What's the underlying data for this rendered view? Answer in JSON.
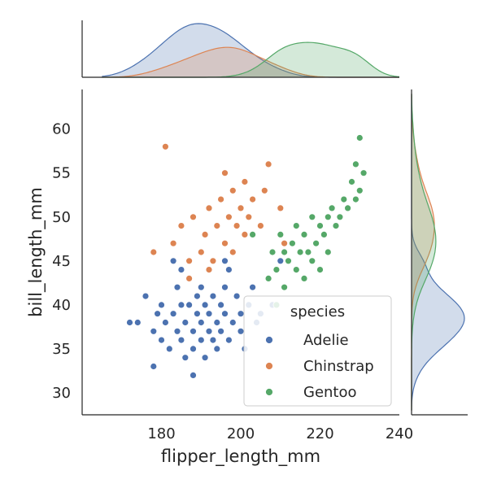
{
  "chart_data": {
    "type": "scatter",
    "subtype": "jointplot",
    "xlabel": "flipper_length_mm",
    "ylabel": "bill_length_mm",
    "xlim": [
      160,
      240
    ],
    "ylim": [
      27.5,
      64.5
    ],
    "xticks": [
      180,
      200,
      220,
      240
    ],
    "yticks": [
      30,
      35,
      40,
      45,
      50,
      55,
      60
    ],
    "grid": false,
    "legend": {
      "title": "species",
      "placement": "bottom-right"
    },
    "marginals": {
      "top": "kde of flipper_length_mm by species",
      "right": "kde of bill_length_mm by species"
    },
    "series": [
      {
        "name": "Adelie",
        "color": "#4c72b0",
        "points": [
          [
            172,
            38
          ],
          [
            174,
            38
          ],
          [
            176,
            41
          ],
          [
            178,
            37
          ],
          [
            179,
            39
          ],
          [
            180,
            36
          ],
          [
            180,
            40
          ],
          [
            181,
            38
          ],
          [
            182,
            35
          ],
          [
            183,
            39
          ],
          [
            184,
            37
          ],
          [
            184,
            42
          ],
          [
            185,
            40
          ],
          [
            185,
            36
          ],
          [
            186,
            38
          ],
          [
            186,
            34
          ],
          [
            187,
            40
          ],
          [
            187,
            43
          ],
          [
            188,
            37
          ],
          [
            188,
            35
          ],
          [
            189,
            39
          ],
          [
            189,
            41
          ],
          [
            190,
            38
          ],
          [
            190,
            36
          ],
          [
            190,
            42
          ],
          [
            191,
            40
          ],
          [
            191,
            34
          ],
          [
            192,
            37
          ],
          [
            192,
            39
          ],
          [
            193,
            41
          ],
          [
            193,
            36
          ],
          [
            194,
            38
          ],
          [
            194,
            35
          ],
          [
            195,
            40
          ],
          [
            195,
            37
          ],
          [
            196,
            42
          ],
          [
            196,
            39
          ],
          [
            197,
            36
          ],
          [
            197,
            44
          ],
          [
            198,
            38
          ],
          [
            199,
            41
          ],
          [
            200,
            37
          ],
          [
            200,
            39
          ],
          [
            201,
            35
          ],
          [
            202,
            40
          ],
          [
            203,
            42
          ],
          [
            204,
            38
          ],
          [
            205,
            39
          ],
          [
            210,
            45
          ],
          [
            208,
            40
          ],
          [
            188,
            32
          ],
          [
            183,
            45
          ],
          [
            178,
            33
          ],
          [
            185,
            44
          ],
          [
            196,
            45
          ]
        ]
      },
      {
        "name": "Chinstrap",
        "color": "#dd8452",
        "points": [
          [
            181,
            58
          ],
          [
            178,
            46
          ],
          [
            183,
            47
          ],
          [
            185,
            49
          ],
          [
            187,
            45
          ],
          [
            188,
            50
          ],
          [
            190,
            46
          ],
          [
            191,
            48
          ],
          [
            192,
            51
          ],
          [
            193,
            45
          ],
          [
            194,
            49
          ],
          [
            195,
            52
          ],
          [
            196,
            47
          ],
          [
            197,
            50
          ],
          [
            198,
            46
          ],
          [
            198,
            53
          ],
          [
            199,
            49
          ],
          [
            200,
            51
          ],
          [
            201,
            48
          ],
          [
            201,
            54
          ],
          [
            202,
            50
          ],
          [
            203,
            52
          ],
          [
            205,
            49
          ],
          [
            206,
            53
          ],
          [
            207,
            56
          ],
          [
            210,
            51
          ],
          [
            211,
            47
          ],
          [
            196,
            55
          ],
          [
            187,
            43
          ],
          [
            192,
            44
          ]
        ]
      },
      {
        "name": "Gentoo",
        "color": "#55a868",
        "points": [
          [
            203,
            48
          ],
          [
            207,
            43
          ],
          [
            208,
            46
          ],
          [
            209,
            44
          ],
          [
            210,
            48
          ],
          [
            211,
            46
          ],
          [
            212,
            45
          ],
          [
            213,
            47
          ],
          [
            214,
            49
          ],
          [
            214,
            44
          ],
          [
            215,
            46
          ],
          [
            216,
            48
          ],
          [
            216,
            43
          ],
          [
            217,
            46
          ],
          [
            218,
            50
          ],
          [
            218,
            45
          ],
          [
            219,
            47
          ],
          [
            220,
            49
          ],
          [
            221,
            48
          ],
          [
            222,
            50
          ],
          [
            222,
            46
          ],
          [
            223,
            51
          ],
          [
            224,
            49
          ],
          [
            225,
            50
          ],
          [
            226,
            52
          ],
          [
            227,
            51
          ],
          [
            228,
            54
          ],
          [
            229,
            52
          ],
          [
            229,
            56
          ],
          [
            230,
            53
          ],
          [
            230,
            59
          ],
          [
            231,
            55
          ],
          [
            209,
            40
          ],
          [
            211,
            42
          ],
          [
            220,
            44
          ]
        ]
      }
    ]
  }
}
